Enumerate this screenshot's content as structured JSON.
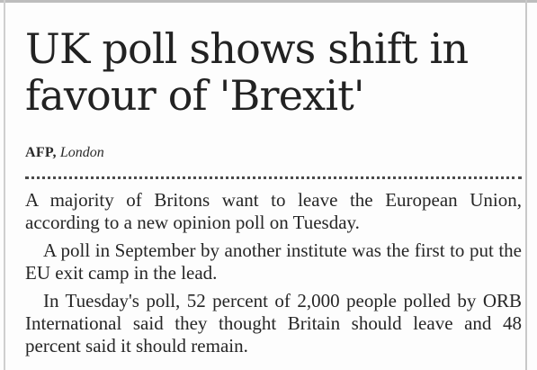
{
  "article": {
    "headline": "UK poll shows shift in favour of 'Brexit'",
    "byline_agency": "AFP,",
    "byline_city": "London",
    "paragraphs": [
      "A majority of Britons want to leave the European Union, according to a new opinion poll on Tuesday.",
      "A poll in September by another institute was the first to put the EU exit camp in the lead.",
      "In Tuesday's poll, 52 percent of 2,000 people polled by ORB International said they thought Britain should leave and 48 percent said it should remain."
    ]
  }
}
